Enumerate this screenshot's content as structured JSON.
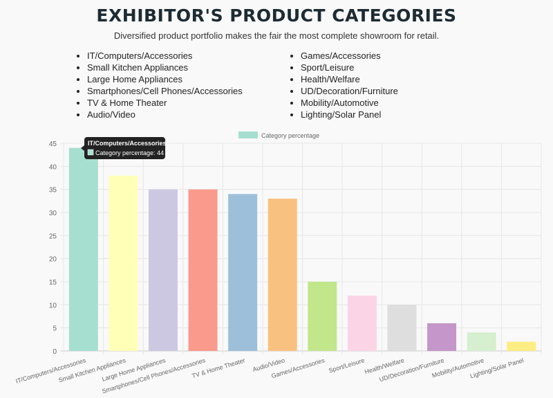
{
  "header": {
    "title": "EXHIBITOR'S PRODUCT CATEGORIES",
    "subtitle": "Diversified product portfolio makes the fair the most complete showroom for retail."
  },
  "list_left": [
    "IT/Computers/Accessories",
    "Small Kitchen Appliances",
    "Large Home Appliances",
    "Smartphones/Cell Phones/Accessories",
    "TV & Home Theater",
    "Audio/Video"
  ],
  "list_right": [
    "Games/Accessories",
    "Sport/Leisure",
    "Health/Welfare",
    "UD/Decoration/Furniture",
    "Mobility/Automotive",
    "Lighting/Solar Panel"
  ],
  "tooltip": {
    "title": "IT/Computers/Accessories",
    "body": "Category percentage: 44"
  },
  "chart_data": {
    "type": "bar",
    "categories": [
      "IT/Computers/Accessories",
      "Small Kitchen Appliances",
      "Large Home Appliances",
      "Smartphones/Cell Phones/Accessories",
      "TV & Home Theater",
      "Audio/Video",
      "Games/Accessories",
      "Sport/Leisure",
      "Health/Welfare",
      "UD/Decoration/Furniture",
      "Mobility/Automotive",
      "Lighting/Solar Panel"
    ],
    "series": [
      {
        "name": "Category percentage",
        "values": [
          44,
          38,
          35,
          35,
          34,
          33,
          15,
          12,
          10,
          6,
          4,
          2
        ]
      }
    ],
    "colors": [
      "#a6dfcf",
      "#ffffb8",
      "#cdc8e2",
      "#fa9a8c",
      "#9dbfda",
      "#f9c17f",
      "#c2e68a",
      "#fbd5e5",
      "#dedede",
      "#c596c9",
      "#d6efcf",
      "#ffec82"
    ],
    "ylim": [
      0,
      45
    ],
    "yticks": [
      0,
      5,
      10,
      15,
      20,
      25,
      30,
      35,
      40,
      45
    ],
    "grid": true,
    "legend": "top"
  }
}
